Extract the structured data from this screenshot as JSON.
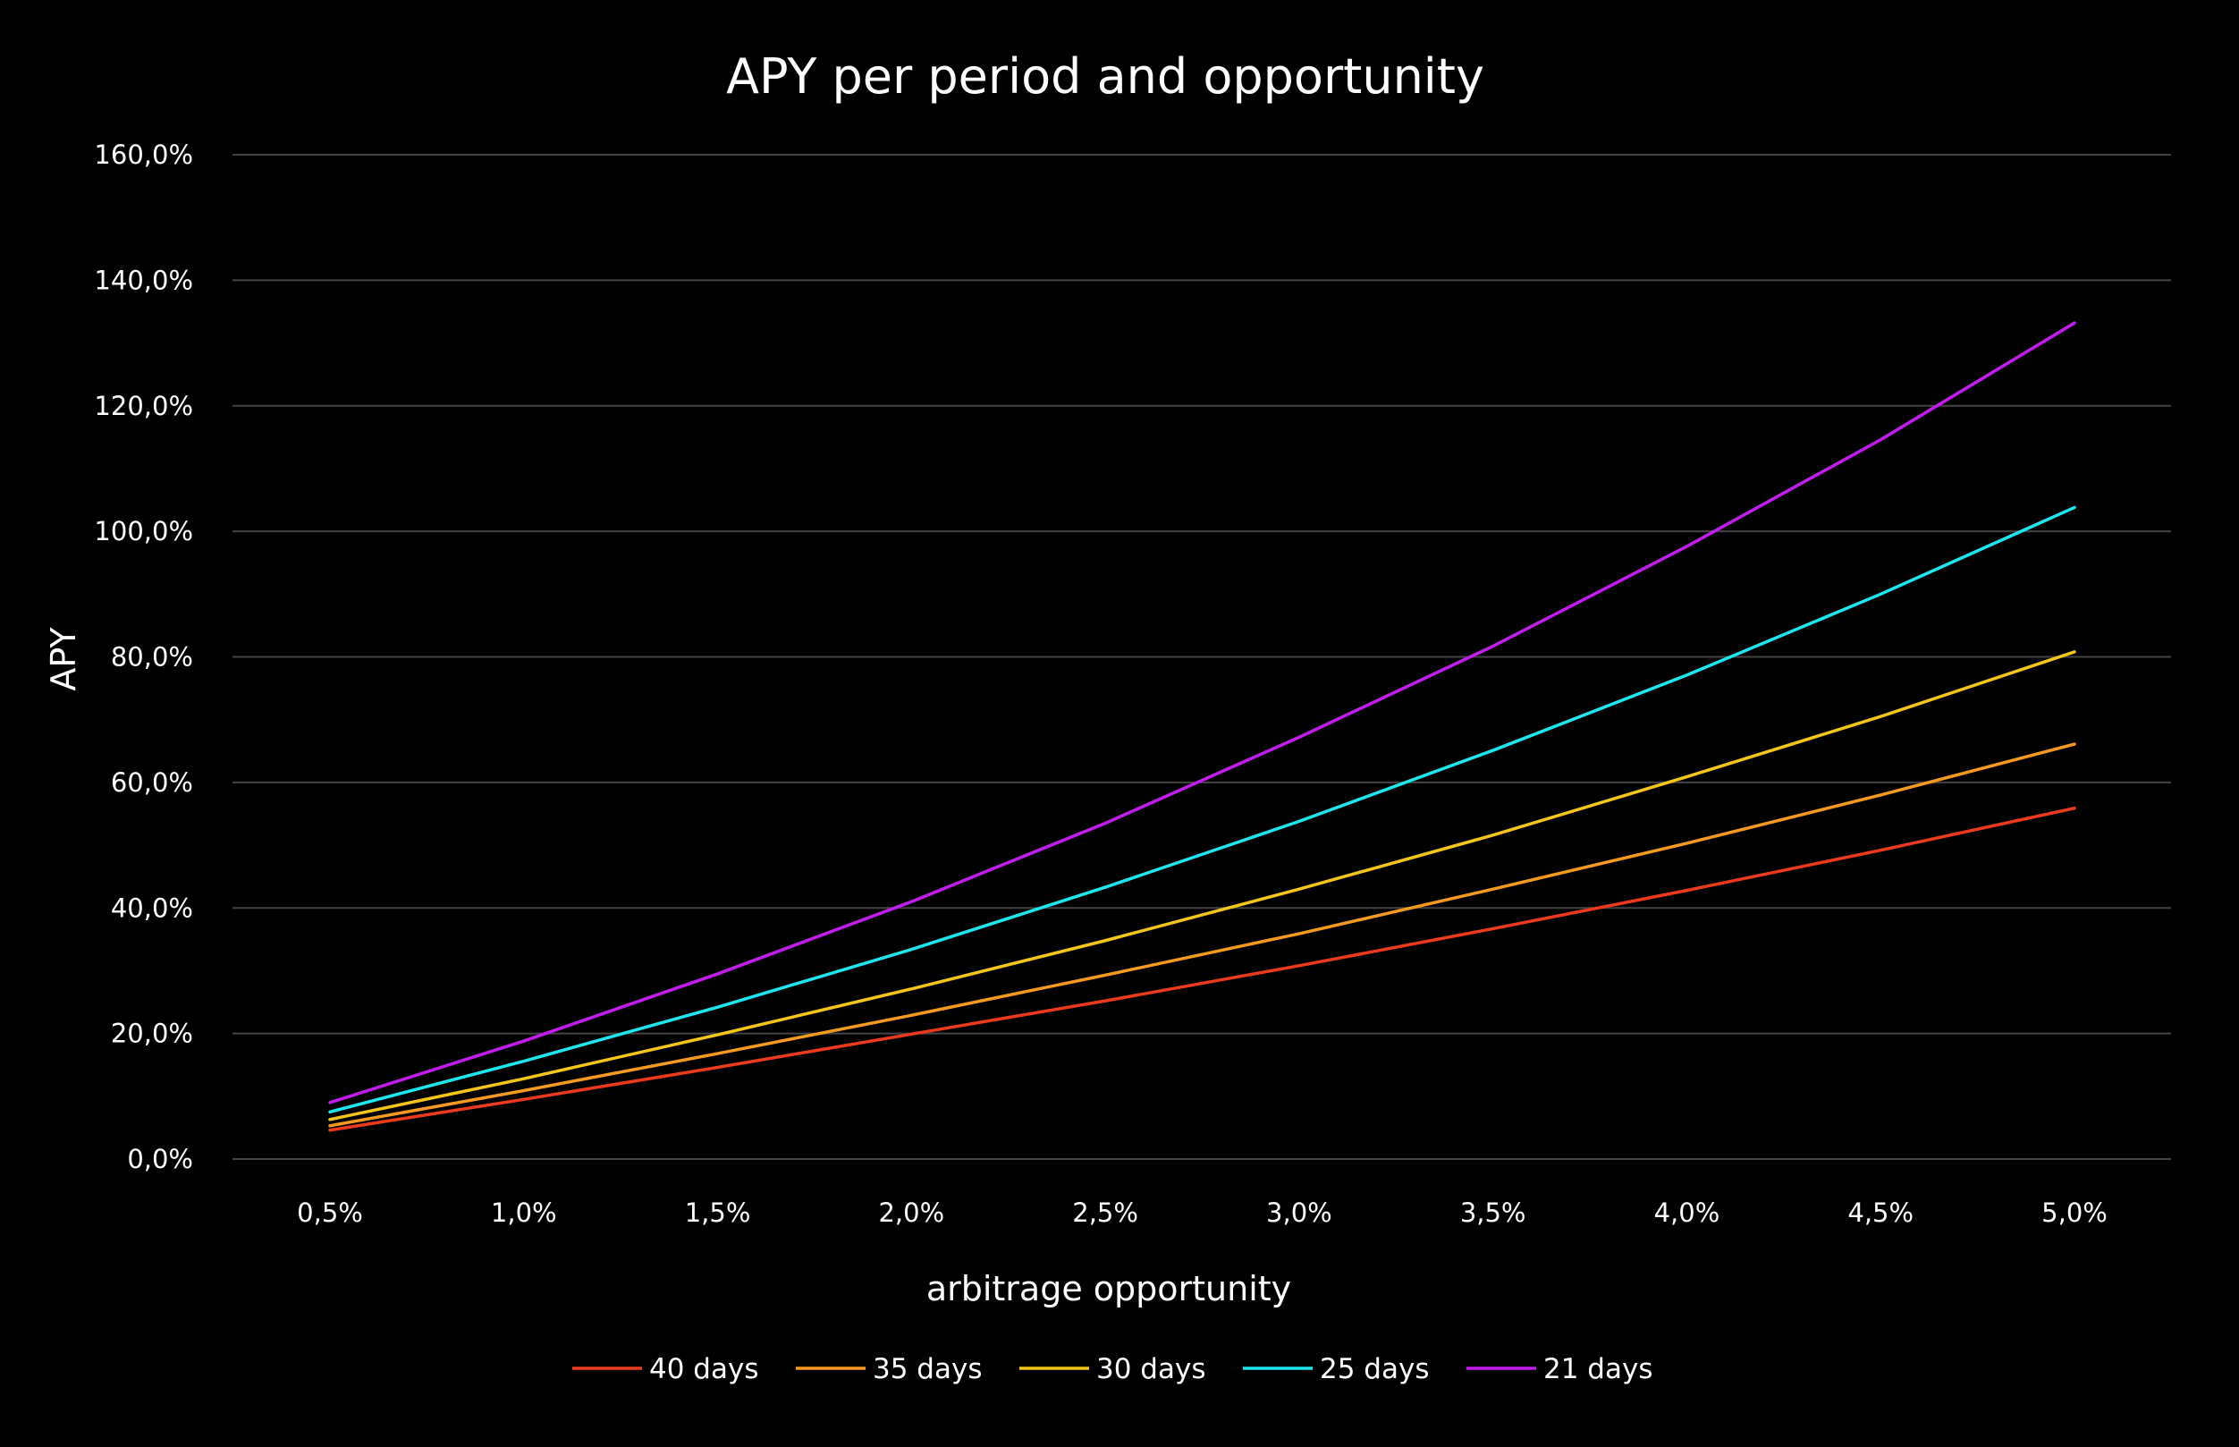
{
  "chart_data": {
    "type": "line",
    "title": "APY per period and opportunity",
    "xlabel": "arbitrage opportunity",
    "ylabel": "APY",
    "categories": [
      "0,5%",
      "1,0%",
      "1,5%",
      "2,0%",
      "2,5%",
      "3,0%",
      "3,5%",
      "4,0%",
      "4,5%",
      "5,0%"
    ],
    "y_ticks": [
      "0,0%",
      "20,0%",
      "40,0%",
      "60,0%",
      "80,0%",
      "100,0%",
      "120,0%",
      "140,0%",
      "160,0%"
    ],
    "ylim": [
      0,
      160
    ],
    "grid": true,
    "legend_position": "bottom",
    "background": "#000000",
    "grid_color": "#444444",
    "series": [
      {
        "name": "40 days",
        "color": "#ee3a1c",
        "values": [
          4.6,
          9.5,
          14.6,
          19.9,
          25.2,
          30.8,
          36.7,
          42.8,
          49.2,
          55.9
        ]
      },
      {
        "name": "35 days",
        "color": "#f59a1e",
        "values": [
          5.3,
          10.9,
          16.8,
          22.9,
          29.3,
          35.9,
          43.0,
          50.3,
          58.0,
          66.1
        ]
      },
      {
        "name": "30 days",
        "color": "#f5c518",
        "values": [
          6.3,
          12.8,
          19.8,
          27.1,
          34.8,
          43.0,
          51.6,
          60.9,
          70.5,
          80.8
        ]
      },
      {
        "name": "25 days",
        "color": "#1ce7f0",
        "values": [
          7.5,
          15.6,
          24.2,
          33.4,
          43.3,
          53.8,
          65.1,
          77.1,
          90.0,
          103.8
        ]
      },
      {
        "name": "21 days",
        "color": "#c41cf0",
        "values": [
          9.0,
          18.8,
          29.5,
          41.0,
          53.5,
          67.2,
          81.7,
          97.6,
          114.6,
          133.2
        ]
      }
    ]
  }
}
